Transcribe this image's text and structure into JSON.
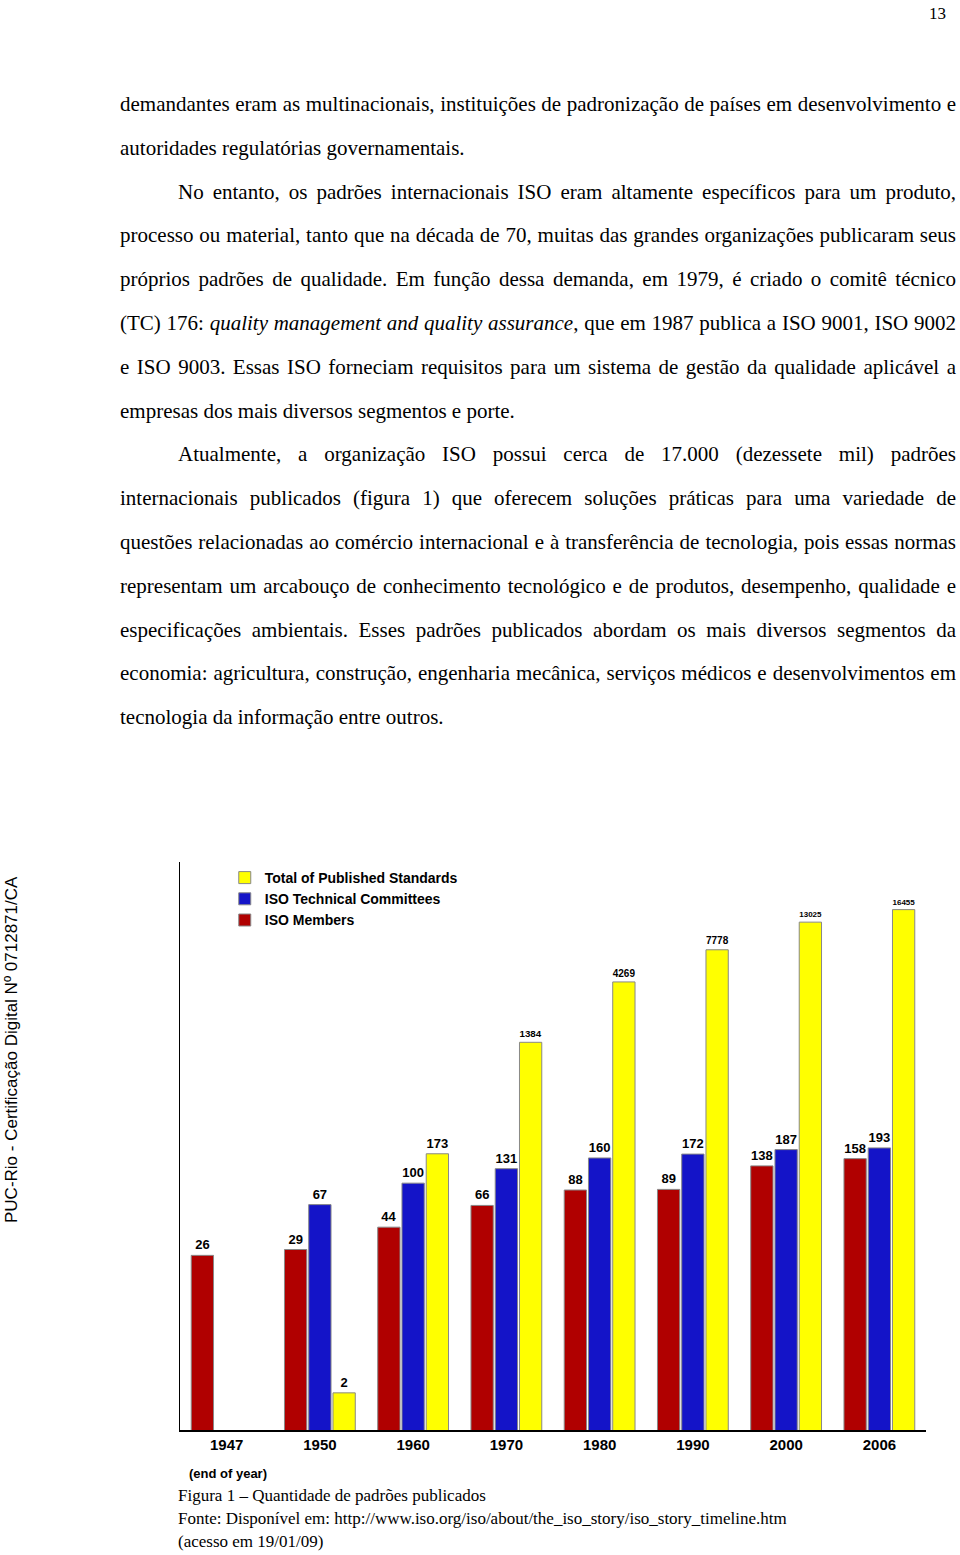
{
  "page_number": "13",
  "side_label": "PUC-Rio - Certificação Digital Nº 0712871/CA",
  "paragraphs": [
    {
      "indent": false,
      "runs": [
        {
          "text": "demandantes eram as multinacionais, instituições de padronização de países em desenvolvimento e autoridades regulatórias governamentais.",
          "italic": false
        }
      ]
    },
    {
      "indent": true,
      "runs": [
        {
          "text": "No entanto, os padrões internacionais ISO eram altamente específicos para um produto, processo ou material, tanto que na década de 70, muitas das grandes organizações publicaram seus próprios padrões de qualidade. Em função dessa demanda, em 1979, é criado o comitê técnico (TC) 176: ",
          "italic": false
        },
        {
          "text": "quality management and quality assurance",
          "italic": true
        },
        {
          "text": ", que em 1987 publica a ISO 9001, ISO 9002 e ISO 9003. Essas ISO forneciam requisitos para um sistema de gestão da qualidade aplicável a empresas dos mais diversos segmentos e porte.",
          "italic": false
        }
      ]
    },
    {
      "indent": true,
      "runs": [
        {
          "text": "Atualmente, a organização ISO possui cerca de 17.000 (dezessete mil) padrões internacionais publicados (figura 1) que oferecem soluções práticas para uma variedade de questões relacionadas ao comércio internacional e à transferência de tecnologia, pois essas normas representam um arcabouço de conhecimento tecnológico e de produtos, desempenho, qualidade e especificações ambientais. Esses padrões publicados abordam os mais diversos segmentos da economia: agricultura, construção, engenharia mecânica, serviços médicos e desenvolvimentos em tecnologia da informação entre outros.",
          "italic": false
        }
      ]
    }
  ],
  "chart_data": {
    "type": "bar",
    "categories": [
      "1947",
      "1950",
      "1960",
      "1970",
      "1980",
      "1990",
      "2000",
      "2006"
    ],
    "x_note": "(end of year)",
    "series": [
      {
        "name": "ISO Members",
        "color": "#b00000",
        "values": [
          26,
          29,
          44,
          66,
          88,
          89,
          138,
          158
        ]
      },
      {
        "name": "ISO Technical Committees",
        "color": "#1414c8",
        "values": [
          null,
          67,
          100,
          131,
          160,
          172,
          187,
          193
        ]
      },
      {
        "name": "Total of Published Standards",
        "color": "#ffff00",
        "values": [
          null,
          2,
          173,
          1384,
          4269,
          7778,
          13025,
          16455
        ]
      }
    ],
    "log": "y",
    "ylim": [
      1,
      40000
    ],
    "grid": false,
    "legend": "top left",
    "data_labels": true,
    "tick_labels": "x"
  },
  "caption": "Figura 1 – Quantidade de padrões publicados",
  "source": [
    "Fonte: Disponível em: http://www.iso.org/iso/about/the_iso_story/iso_story_timeline.htm",
    "(acesso em 19/01/09)"
  ]
}
